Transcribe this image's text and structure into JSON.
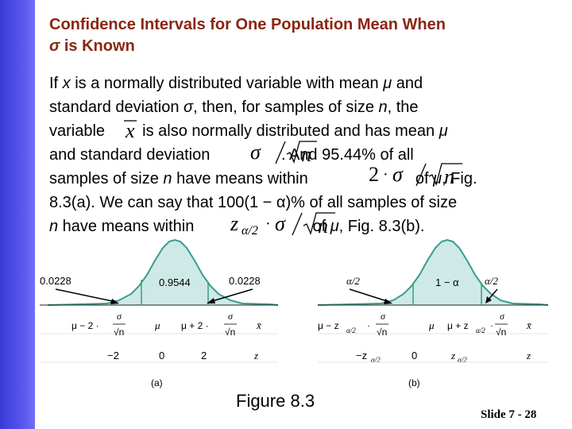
{
  "title": {
    "line1": "Confidence Intervals for One Population Mean When",
    "sigma": "σ",
    "line2_rest": " is Known"
  },
  "paragraph": {
    "l1_a": "If ",
    "l1_x": "x",
    "l1_b": " is a normally distributed variable with mean ",
    "l1_mu": "μ",
    "l1_c": " and",
    "l2_a": "standard deviation ",
    "l2_sigma": "σ",
    "l2_b": ", then, for samples of size ",
    "l2_n": "n",
    "l2_c": ", the",
    "l3_a": "variable ",
    "l3_b": " is also normally distributed and has mean ",
    "l3_mu": "μ",
    "l4_a": "and standard deviation ",
    "l4_b": ". And 95.44% of all",
    "l5_a": "samples of size ",
    "l5_n": "n",
    "l5_b": " have means within ",
    "l5_c": " of ",
    "l5_mu": "μ",
    "l5_d": ", Fig.",
    "l6": "8.3(a). We can say that 100(1 − α)% of all samples of size",
    "l7_n": "n",
    "l7_a": " have means within ",
    "l7_b": " of ",
    "l7_mu": "μ",
    "l7_c": ", Fig. 8.3(b)."
  },
  "math": {
    "xbar": "x",
    "sigma": "σ",
    "n": "n",
    "two": "2",
    "dot": "·",
    "z": "z",
    "alpha_half": "α/2",
    "slash": "/"
  },
  "figure_a": {
    "center_label": "0.9544",
    "left_tail": "0.0228",
    "right_tail": "0.0228",
    "x_labels": {
      "left_prefix": "μ − 2 ·",
      "center": "μ",
      "right_prefix": "μ + 2 ·",
      "frac_num": "σ",
      "frac_den": "√n",
      "axis": "x̄"
    },
    "z_labels": [
      "−2",
      "0",
      "2"
    ],
    "z_axis": "z",
    "panel_label": "(a)"
  },
  "figure_b": {
    "center_label": "1 − α",
    "left_tail": "α/2",
    "right_tail": "α/2",
    "x_labels": {
      "left_prefix": "μ − z",
      "left_sub": "α/2",
      "center": "μ",
      "right_prefix": "μ + z",
      "right_sub": "α/2",
      "frac_num": "σ",
      "frac_den": "√n",
      "axis": "x̄"
    },
    "z_labels": {
      "left": "−z",
      "left_sub": "α/2",
      "center": "0",
      "right": "z",
      "right_sub": "α/2"
    },
    "z_axis": "z",
    "panel_label": "(b)"
  },
  "caption": "Figure 8.3",
  "slide_number": "Slide 7 - 28",
  "colors": {
    "sidebar": "#4b4be8",
    "title": "#8b2512",
    "shade": "#cfe9e6",
    "curve": "#3a9c8c",
    "arrow": "#000000"
  }
}
